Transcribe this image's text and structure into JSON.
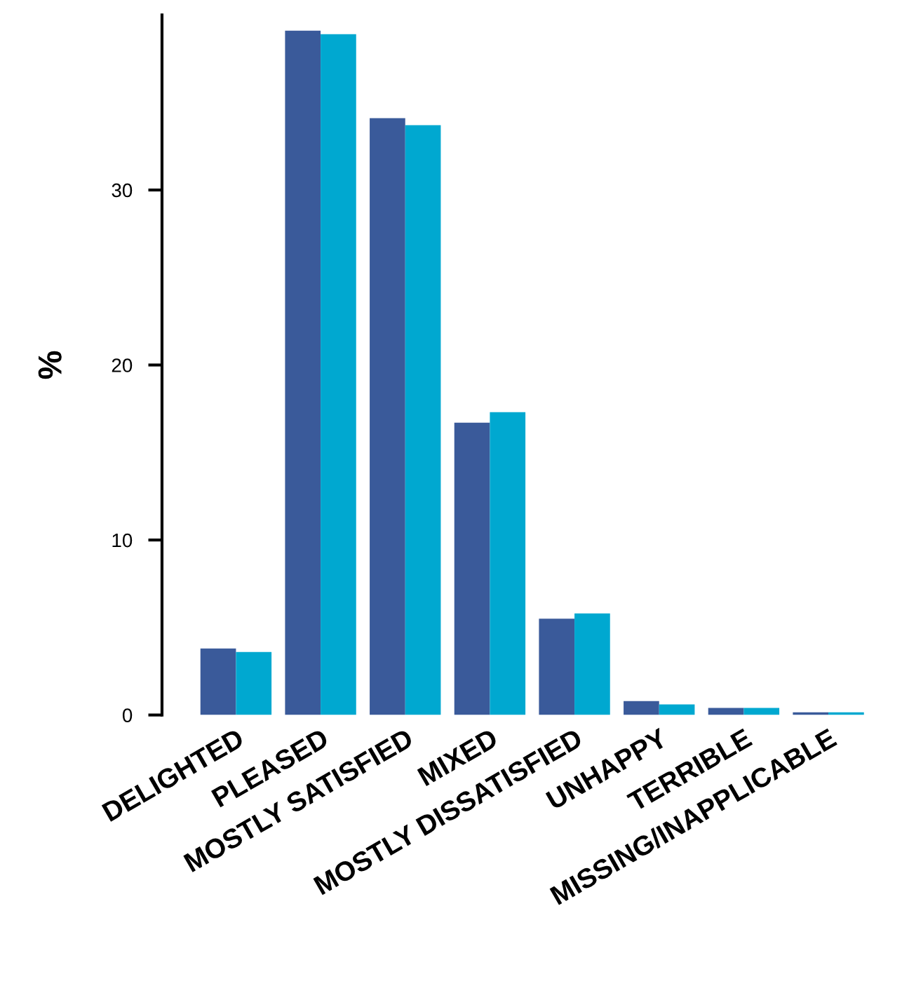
{
  "chart_data": {
    "type": "bar",
    "ylabel": "%",
    "categories": [
      "DELIGHTED",
      "PLEASED",
      "MOSTLY SATISFIED",
      "MIXED",
      "MOSTLY DISSATISFIED",
      "UNHAPPY",
      "TERRIBLE",
      "MISSING/INAPPLICABLE"
    ],
    "series": [
      {
        "color": "#3a5a9a",
        "values": [
          3.8,
          39.1,
          34.1,
          16.7,
          5.5,
          0.8,
          0.4,
          0.15
        ]
      },
      {
        "color": "#00a8d0",
        "values": [
          3.6,
          38.9,
          33.7,
          17.3,
          5.8,
          0.6,
          0.4,
          0.15
        ]
      }
    ],
    "ylim": [
      0,
      40
    ],
    "yticks": [
      0,
      10,
      20,
      30
    ],
    "grid": false,
    "legend": false
  }
}
